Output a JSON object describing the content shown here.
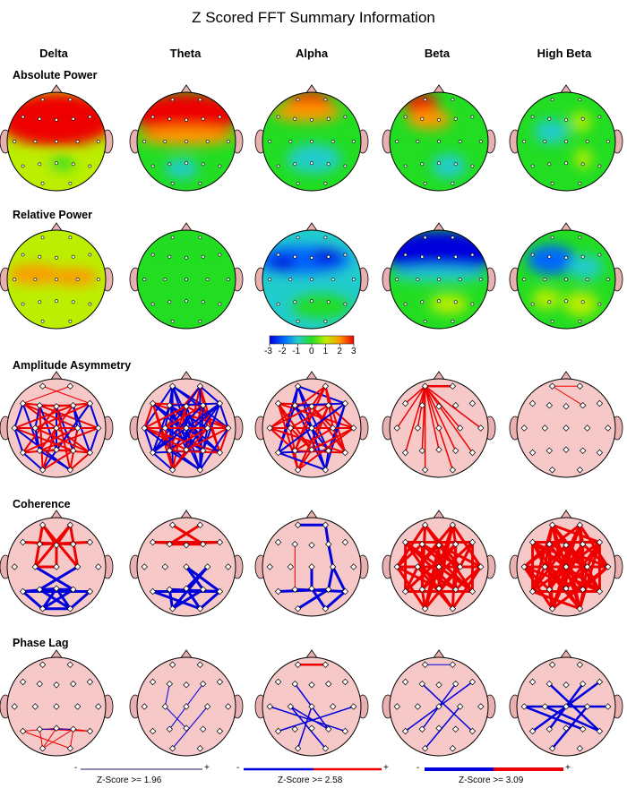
{
  "title": "Z Scored FFT Summary Information",
  "bands": [
    "Delta",
    "Theta",
    "Alpha",
    "Beta",
    "High Beta"
  ],
  "rows": [
    "Absolute Power",
    "Relative Power",
    "Amplitude Asymmetry",
    "Coherence",
    "Phase Lag"
  ],
  "colorbar": {
    "ticks": [
      "-3",
      "-2",
      "-1",
      "0",
      "1",
      "2",
      "3"
    ],
    "colors": [
      "#0000dd",
      "#0066ff",
      "#22cccc",
      "#22dd22",
      "#bbee00",
      "#ff9900",
      "#ee0000"
    ]
  },
  "line_legend": [
    {
      "minus": "-",
      "plus": "+",
      "label": "Z-Score >= 1.96"
    },
    {
      "minus": "-",
      "plus": "+",
      "label": "Z-Score >= 2.58"
    },
    {
      "minus": "-",
      "plus": "+",
      "label": "Z-Score >= 3.09"
    }
  ],
  "colors": {
    "red": "#ee0000",
    "blue": "#0000dd",
    "head_fill": "#f6c8c8",
    "ear_fill": "#e8b0b0"
  }
}
